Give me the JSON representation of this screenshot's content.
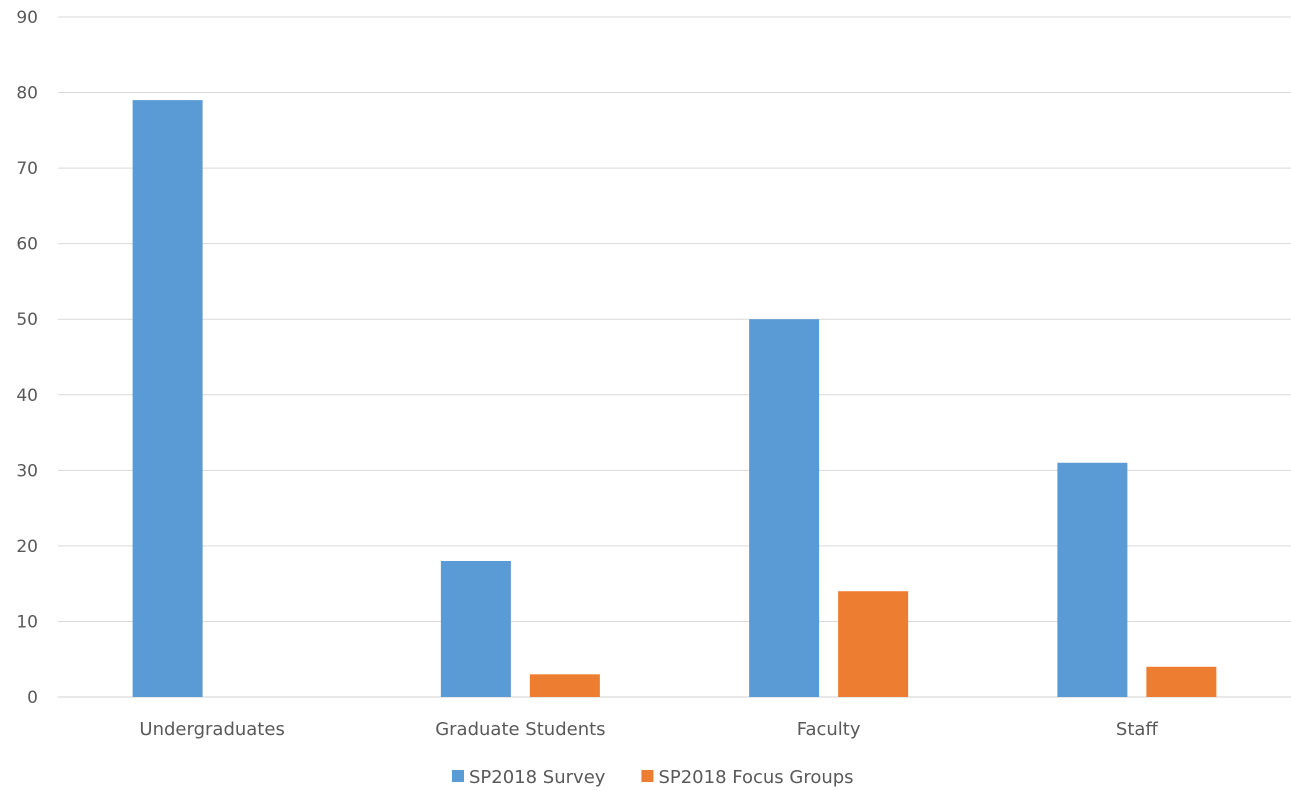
{
  "chart_data": {
    "type": "bar",
    "title": "",
    "xlabel": "",
    "ylabel": "",
    "ylim": [
      0,
      90
    ],
    "yticks": [
      0,
      10,
      20,
      30,
      40,
      50,
      60,
      70,
      80,
      90
    ],
    "grid": true,
    "legend_position": "bottom",
    "categories": [
      "Undergraduates",
      "Graduate Students",
      "Faculty",
      "Staff"
    ],
    "series": [
      {
        "name": "SP2018 Survey",
        "color": "#5b9bd5",
        "values": [
          79,
          18,
          50,
          31
        ]
      },
      {
        "name": "SP2018 Focus Groups",
        "color": "#ed7d31",
        "values": [
          0,
          3,
          14,
          4
        ]
      }
    ]
  }
}
